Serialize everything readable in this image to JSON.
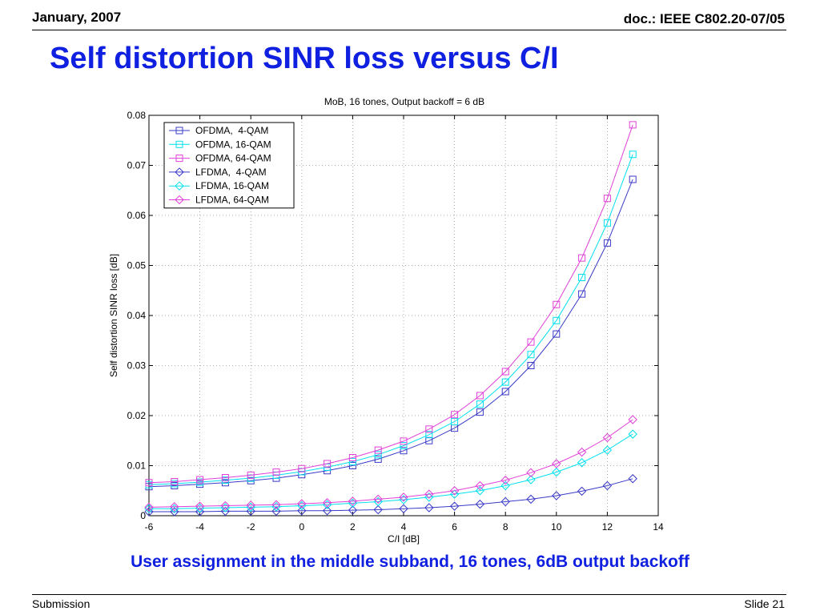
{
  "header": {
    "date": "January, 2007",
    "doc": "doc.: IEEE C802.20-07/05"
  },
  "title": "Self distortion SINR loss versus C/I",
  "caption": "User assignment in the middle subband, 16 tones, 6dB output backoff",
  "footer": {
    "left": "Submission",
    "right": "Slide 21"
  },
  "chart_data": {
    "type": "line",
    "title": "MoB, 16 tones, Output backoff = 6 dB",
    "xlabel": "C/I [dB]",
    "ylabel": "Self distortion SINR loss [dB]",
    "xlim": [
      -6,
      14
    ],
    "ylim": [
      0,
      0.08
    ],
    "xticks": [
      -6,
      -4,
      -2,
      0,
      2,
      4,
      6,
      8,
      10,
      12,
      14
    ],
    "yticks": [
      0,
      0.01,
      0.02,
      0.03,
      0.04,
      0.05,
      0.06,
      0.07,
      0.08
    ],
    "ytick_labels": [
      "0",
      "0.01",
      "0.02",
      "0.03",
      "0.04",
      "0.05",
      "0.06",
      "0.07",
      "0.08"
    ],
    "grid": true,
    "legend_position": "top-left",
    "x": [
      -6,
      -5,
      -4,
      -3,
      -2,
      -1,
      0,
      1,
      2,
      3,
      4,
      5,
      6,
      7,
      8,
      9,
      10,
      11,
      12,
      13
    ],
    "series": [
      {
        "name": "OFDMA,  4-QAM",
        "marker": "square",
        "color": "#3a3ac8",
        "values": [
          0.0058,
          0.006,
          0.0063,
          0.0066,
          0.007,
          0.0075,
          0.0082,
          0.009,
          0.01,
          0.0113,
          0.013,
          0.015,
          0.0175,
          0.0207,
          0.0248,
          0.03,
          0.0363,
          0.0443,
          0.0545,
          0.0672
        ]
      },
      {
        "name": "OFDMA, 16-QAM",
        "marker": "square",
        "color": "#00e0ee",
        "values": [
          0.0062,
          0.0064,
          0.0067,
          0.0071,
          0.0075,
          0.0081,
          0.0088,
          0.0097,
          0.0108,
          0.0122,
          0.014,
          0.0162,
          0.0188,
          0.0223,
          0.0267,
          0.0322,
          0.039,
          0.0476,
          0.0585,
          0.0722
        ]
      },
      {
        "name": "OFDMA, 64-QAM",
        "marker": "square",
        "color": "#e040d8",
        "values": [
          0.0066,
          0.0068,
          0.0072,
          0.0076,
          0.0081,
          0.0087,
          0.0094,
          0.0104,
          0.0116,
          0.0131,
          0.0149,
          0.0173,
          0.0202,
          0.024,
          0.0288,
          0.0347,
          0.0422,
          0.0515,
          0.0634,
          0.0781
        ]
      },
      {
        "name": "LFDMA,  4-QAM",
        "marker": "diamond",
        "color": "#3a3ac8",
        "values": [
          0.0008,
          0.0008,
          0.0008,
          0.0009,
          0.0009,
          0.0009,
          0.001,
          0.001,
          0.0011,
          0.0012,
          0.0014,
          0.0016,
          0.0019,
          0.0023,
          0.0028,
          0.0033,
          0.004,
          0.0049,
          0.006,
          0.0074
        ]
      },
      {
        "name": "LFDMA, 16-QAM",
        "marker": "diamond",
        "color": "#00e0ee",
        "values": [
          0.0014,
          0.0014,
          0.0015,
          0.0016,
          0.0017,
          0.0018,
          0.002,
          0.0022,
          0.0025,
          0.0028,
          0.0032,
          0.0037,
          0.0043,
          0.005,
          0.006,
          0.0072,
          0.0087,
          0.0106,
          0.0131,
          0.0163
        ]
      },
      {
        "name": "LFDMA, 64-QAM",
        "marker": "diamond",
        "color": "#e040d8",
        "values": [
          0.0017,
          0.0018,
          0.0019,
          0.002,
          0.0021,
          0.0022,
          0.0024,
          0.0026,
          0.0029,
          0.0033,
          0.0037,
          0.0043,
          0.005,
          0.006,
          0.0071,
          0.0086,
          0.0104,
          0.0127,
          0.0156,
          0.0192
        ]
      }
    ]
  }
}
